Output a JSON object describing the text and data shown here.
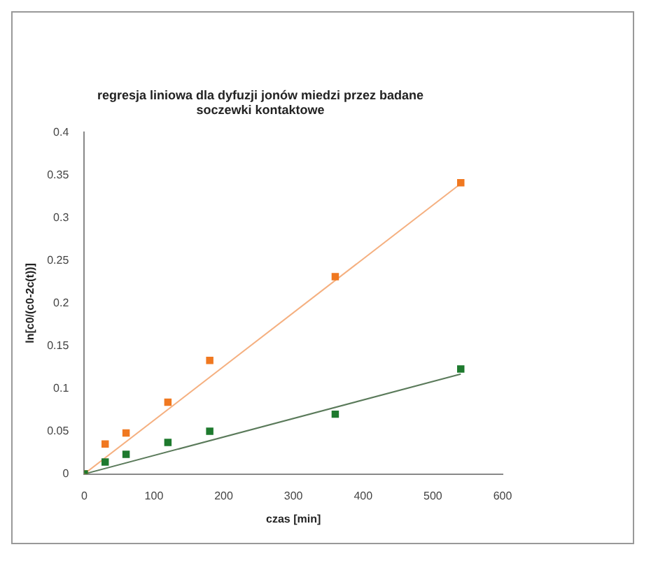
{
  "chart_data": {
    "type": "scatter",
    "title": "regresja liniowa dla dyfuzji jonów miedzi przez badane soczewki kontaktowe",
    "xlabel": "czas [min]",
    "ylabel": "ln[c0/(c0-2c(t))]",
    "series": [
      {
        "color": "#1e7a2e",
        "x": [
          0,
          30,
          60,
          120,
          180,
          360,
          540
        ],
        "values": [
          0,
          0.014,
          0.023,
          0.037,
          0.05,
          0.07,
          0.123
        ]
      },
      {
        "color": "#f07820",
        "x": [
          0,
          30,
          60,
          120,
          180,
          360,
          540
        ],
        "values": [
          0,
          0.035,
          0.048,
          0.084,
          0.133,
          0.231,
          0.341
        ]
      },
      {
        "type": "line",
        "marker": "none",
        "color": "#5a7a5a",
        "x": [
          0,
          540
        ],
        "values": [
          0,
          0.117
        ]
      },
      {
        "type": "line",
        "marker": "none",
        "color": "#f5b080",
        "x": [
          0,
          540
        ],
        "values": [
          0,
          0.34
        ]
      }
    ],
    "xlim": [
      0,
      600
    ],
    "xticks": [
      0,
      100,
      200,
      300,
      400,
      500,
      600
    ],
    "ylim": [
      0,
      0.4
    ],
    "yticks": [
      0,
      0.05,
      0.1,
      0.15,
      0.2,
      0.25,
      0.3,
      0.35,
      0.4
    ],
    "grid": false,
    "legend": false,
    "marker": "square"
  }
}
